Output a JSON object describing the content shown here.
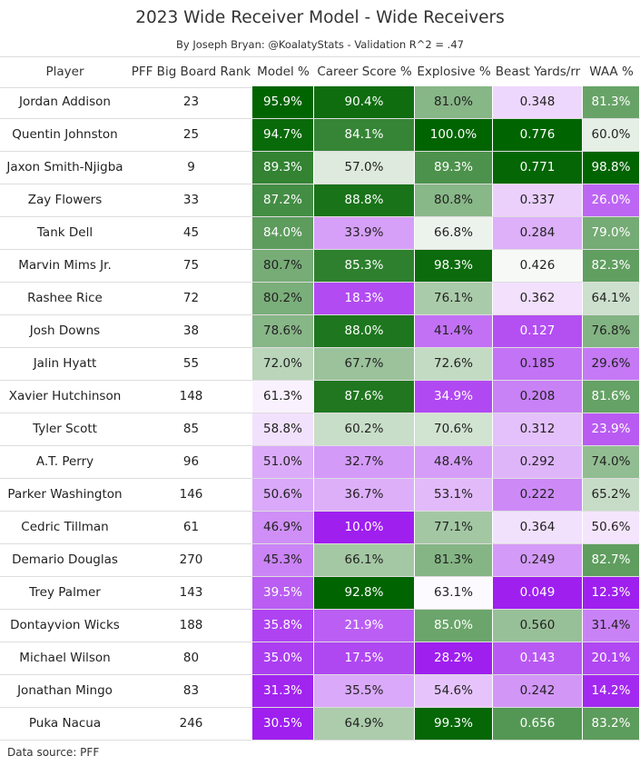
{
  "title": "2023 Wide Receiver Model - Wide Receivers",
  "subtitle": "By Joseph Bryan: @KoalatyStats - Validation R^2 = .47",
  "footer": "Data source: PFF",
  "columns": [
    "Player",
    "PFF Big Board Rank",
    "Model %",
    "Career Score %",
    "Explosive %",
    "Beast Yards/rr",
    "WAA %"
  ],
  "colors": {
    "high": "#006400",
    "mid": "#ffffff",
    "low": "#9f1fef"
  },
  "chart_data": {
    "type": "table",
    "rows": [
      {
        "player": "Jordan Addison",
        "rank": "23",
        "model": "95.9%",
        "career": "90.4%",
        "explosive": "81.0%",
        "beast": "0.348",
        "waa": "81.3%"
      },
      {
        "player": "Quentin Johnston",
        "rank": "25",
        "model": "94.7%",
        "career": "84.1%",
        "explosive": "100.0%",
        "beast": "0.776",
        "waa": "60.0%"
      },
      {
        "player": "Jaxon Smith-Njigba",
        "rank": "9",
        "model": "89.3%",
        "career": "57.0%",
        "explosive": "89.3%",
        "beast": "0.771",
        "waa": "98.8%"
      },
      {
        "player": "Zay Flowers",
        "rank": "33",
        "model": "87.2%",
        "career": "88.8%",
        "explosive": "80.8%",
        "beast": "0.337",
        "waa": "26.0%"
      },
      {
        "player": "Tank Dell",
        "rank": "45",
        "model": "84.0%",
        "career": "33.9%",
        "explosive": "66.8%",
        "beast": "0.284",
        "waa": "79.0%"
      },
      {
        "player": "Marvin Mims Jr.",
        "rank": "75",
        "model": "80.7%",
        "career": "85.3%",
        "explosive": "98.3%",
        "beast": "0.426",
        "waa": "82.3%"
      },
      {
        "player": "Rashee Rice",
        "rank": "72",
        "model": "80.2%",
        "career": "18.3%",
        "explosive": "76.1%",
        "beast": "0.362",
        "waa": "64.1%"
      },
      {
        "player": "Josh Downs",
        "rank": "38",
        "model": "78.6%",
        "career": "88.0%",
        "explosive": "41.4%",
        "beast": "0.127",
        "waa": "76.8%"
      },
      {
        "player": "Jalin Hyatt",
        "rank": "55",
        "model": "72.0%",
        "career": "67.7%",
        "explosive": "72.6%",
        "beast": "0.185",
        "waa": "29.6%"
      },
      {
        "player": "Xavier Hutchinson",
        "rank": "148",
        "model": "61.3%",
        "career": "87.6%",
        "explosive": "34.9%",
        "beast": "0.208",
        "waa": "81.6%"
      },
      {
        "player": "Tyler Scott",
        "rank": "85",
        "model": "58.8%",
        "career": "60.2%",
        "explosive": "70.6%",
        "beast": "0.312",
        "waa": "23.9%"
      },
      {
        "player": "A.T. Perry",
        "rank": "96",
        "model": "51.0%",
        "career": "32.7%",
        "explosive": "48.4%",
        "beast": "0.292",
        "waa": "74.0%"
      },
      {
        "player": "Parker Washington",
        "rank": "146",
        "model": "50.6%",
        "career": "36.7%",
        "explosive": "53.1%",
        "beast": "0.222",
        "waa": "65.2%"
      },
      {
        "player": "Cedric Tillman",
        "rank": "61",
        "model": "46.9%",
        "career": "10.0%",
        "explosive": "77.1%",
        "beast": "0.364",
        "waa": "50.6%"
      },
      {
        "player": "Demario Douglas",
        "rank": "270",
        "model": "45.3%",
        "career": "66.1%",
        "explosive": "81.3%",
        "beast": "0.249",
        "waa": "82.7%"
      },
      {
        "player": "Trey Palmer",
        "rank": "143",
        "model": "39.5%",
        "career": "92.8%",
        "explosive": "63.1%",
        "beast": "0.049",
        "waa": "12.3%"
      },
      {
        "player": "Dontayvion Wicks",
        "rank": "188",
        "model": "35.8%",
        "career": "21.9%",
        "explosive": "85.0%",
        "beast": "0.560",
        "waa": "31.4%"
      },
      {
        "player": "Michael Wilson",
        "rank": "80",
        "model": "35.0%",
        "career": "17.5%",
        "explosive": "28.2%",
        "beast": "0.143",
        "waa": "20.1%"
      },
      {
        "player": "Jonathan Mingo",
        "rank": "83",
        "model": "31.3%",
        "career": "35.5%",
        "explosive": "54.6%",
        "beast": "0.242",
        "waa": "14.2%"
      },
      {
        "player": "Puka Nacua",
        "rank": "246",
        "model": "30.5%",
        "career": "64.9%",
        "explosive": "99.3%",
        "beast": "0.656",
        "waa": "83.2%"
      }
    ]
  }
}
